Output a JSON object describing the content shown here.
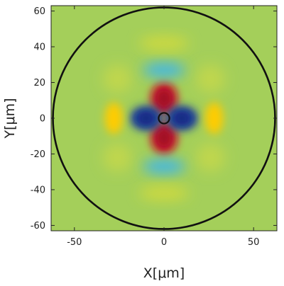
{
  "chart_data": {
    "type": "heatmap",
    "title": "",
    "xlabel": "X[μm]",
    "ylabel": "Y[μm]",
    "xlim": [
      -63,
      63
    ],
    "ylim": [
      -63,
      63
    ],
    "x_ticks": [
      -50,
      0,
      50
    ],
    "y_ticks": [
      -60,
      -40,
      -20,
      0,
      20,
      40,
      60
    ],
    "x_tick_labels": [
      "-50",
      "0",
      "50"
    ],
    "y_tick_labels": [
      "-60",
      "-40",
      "-20",
      "0",
      "20",
      "40",
      "60"
    ],
    "grid": false,
    "colormap": "jet",
    "background_value_color": "#a4cf5a",
    "circles": [
      {
        "name": "outer-boundary",
        "center": [
          0,
          0
        ],
        "radius": 62
      },
      {
        "name": "inner-core",
        "center": [
          0,
          0
        ],
        "radius": 3
      }
    ],
    "lobes": [
      {
        "x": 0,
        "y": 11,
        "value": 1.0,
        "color": "#c8102e"
      },
      {
        "x": 0,
        "y": -11,
        "value": 1.0,
        "color": "#c8102e"
      },
      {
        "x": -10,
        "y": 0,
        "value": -1.0,
        "color": "#1f3f9f"
      },
      {
        "x": 10,
        "y": 0,
        "value": -1.0,
        "color": "#1f3f9f"
      },
      {
        "x": -28,
        "y": 0,
        "value": 0.55,
        "color": "#ffcc00"
      },
      {
        "x": 28,
        "y": 0,
        "value": 0.55,
        "color": "#ffcc00"
      },
      {
        "x": 0,
        "y": 27,
        "value": -0.35,
        "color": "#3fb6e8"
      },
      {
        "x": 0,
        "y": -27,
        "value": -0.35,
        "color": "#3fb6e8"
      },
      {
        "x": 0,
        "y": 42,
        "value": 0.15,
        "color": "#d8dc3a"
      },
      {
        "x": 0,
        "y": -42,
        "value": 0.15,
        "color": "#d8dc3a"
      },
      {
        "x": -26,
        "y": 22,
        "value": 0.1,
        "color": "#c5d84a"
      },
      {
        "x": 26,
        "y": 22,
        "value": 0.1,
        "color": "#c5d84a"
      },
      {
        "x": -26,
        "y": -22,
        "value": 0.1,
        "color": "#c5d84a"
      },
      {
        "x": 26,
        "y": -22,
        "value": 0.1,
        "color": "#c5d84a"
      }
    ]
  }
}
